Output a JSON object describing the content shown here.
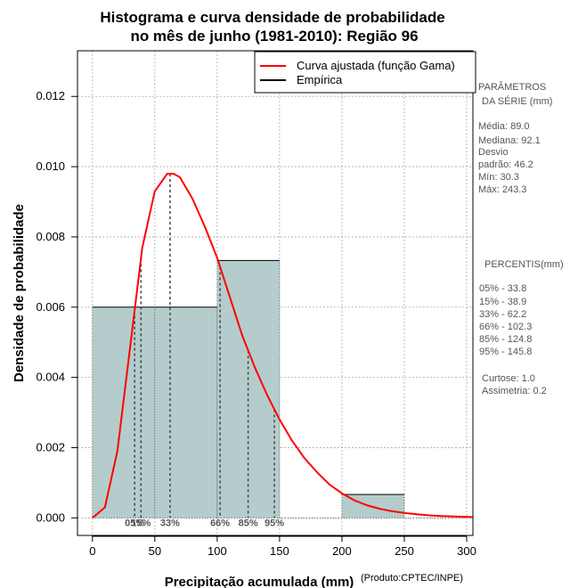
{
  "chart_data": {
    "type": "bar",
    "title_lines": [
      "Histograma e curva densidade de probabilidade",
      "no mês de junho (1981-2010): Região 96"
    ],
    "xlabel": "Precipitação acumulada (mm)",
    "ylabel": "Densidade de probabilidade",
    "credit": "(Produto:CPTEC/INPE)",
    "xlim": [
      -12,
      305
    ],
    "ylim": [
      -0.0005,
      0.0133
    ],
    "x_ticks": [
      0,
      50,
      100,
      150,
      200,
      250,
      300
    ],
    "x_tick_labels": [
      "0",
      "50",
      "100",
      "150",
      "200",
      "250",
      "300"
    ],
    "y_ticks": [
      0.0,
      0.002,
      0.004,
      0.006,
      0.008,
      0.01,
      0.012
    ],
    "y_tick_labels": [
      "0.000",
      "0.002",
      "0.004",
      "0.006",
      "0.008",
      "0.010",
      "0.012"
    ],
    "grid": true,
    "legend_placement": "top-right",
    "bins": [
      {
        "x0": 0,
        "x1": 50,
        "density": 0.006
      },
      {
        "x0": 50,
        "x1": 100,
        "density": 0.006
      },
      {
        "x0": 100,
        "x1": 150,
        "density": 0.00733
      },
      {
        "x0": 150,
        "x1": 200,
        "density": 0.0
      },
      {
        "x0": 200,
        "x1": 250,
        "density": 0.000667
      },
      {
        "x0": 250,
        "x1": 300,
        "density": 0.0
      }
    ],
    "series": [
      {
        "name": "Curva ajustada (função Gama)",
        "color": "#ff0000",
        "x": [
          0,
          10,
          20,
          30,
          40,
          50,
          60,
          65,
          70,
          80,
          90,
          100,
          110,
          120,
          130,
          140,
          150,
          160,
          170,
          180,
          190,
          200,
          210,
          220,
          230,
          240,
          250,
          260,
          270,
          280,
          290,
          300,
          305
        ],
        "y": [
          0.0,
          0.0003,
          0.0019,
          0.0048,
          0.0077,
          0.0093,
          0.0098,
          0.0098,
          0.0097,
          0.0091,
          0.0083,
          0.0074,
          0.0063,
          0.0052,
          0.0043,
          0.0035,
          0.0028,
          0.0022,
          0.0017,
          0.0013,
          0.00095,
          0.0007,
          0.0005,
          0.00036,
          0.00026,
          0.00019,
          0.00014,
          0.0001,
          7e-05,
          5e-05,
          4e-05,
          3e-05,
          2e-05
        ]
      },
      {
        "name": "Empírica",
        "color": "#000000"
      }
    ],
    "percentile_marks": [
      {
        "label": "05%",
        "x": 33.8
      },
      {
        "label": "15%",
        "x": 38.9
      },
      {
        "label": "33%",
        "x": 62.2
      },
      {
        "label": "66%",
        "x": 102.3
      },
      {
        "label": "85%",
        "x": 124.8
      },
      {
        "label": "95%",
        "x": 145.8
      }
    ],
    "colors": {
      "bar_fill": "#b4cccc",
      "bar_stroke": "#000000",
      "curve": "#ff0000",
      "grid": "#aaaaaa",
      "percentile_line": "#444444"
    }
  },
  "side_panel": {
    "parametros_title": [
      "PARÂMETROS",
      "DA SÉRIE (mm)"
    ],
    "parametros": [
      "Média:  89.0",
      "Mediana:  92.1",
      "Desvio",
      "padrão:  46.2",
      "Mín:  30.3",
      "Máx:  243.3"
    ],
    "percentis_title": "PERCENTIS(mm)",
    "percentis": [
      "05% -   33.8",
      "15% -   38.9",
      "33% -   62.2",
      "66% -   102.3",
      "85% -   124.8",
      "95% -   145.8"
    ],
    "extra": [
      "Curtose:  1.0",
      "Assimetria:  0.2"
    ]
  }
}
